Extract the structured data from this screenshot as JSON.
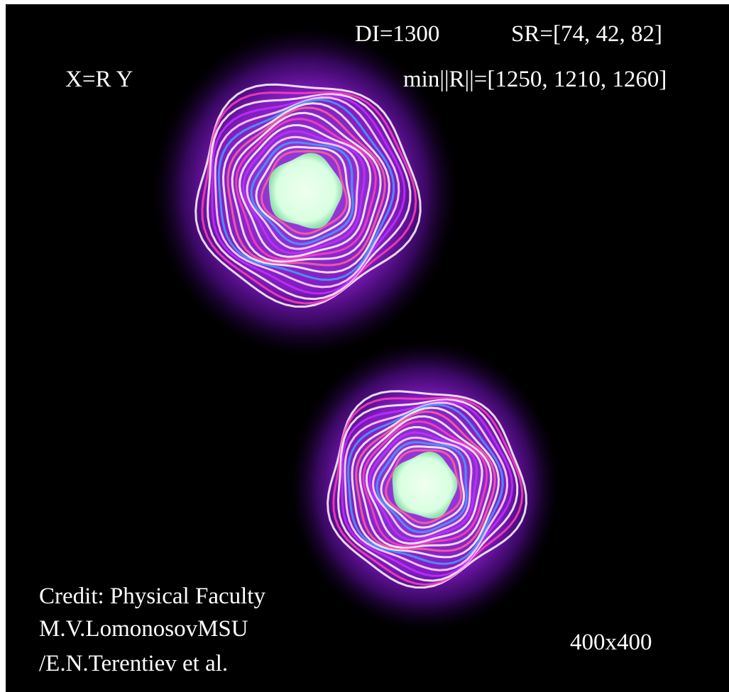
{
  "header": {
    "di": "DI=1300",
    "sr": "SR=[74, 42, 82]",
    "axes": "X=R Y",
    "min_r": "min||R||=[1250, 1210, 1260]"
  },
  "credit": {
    "lines": [
      "Credit: Physical Faculty",
      "M.V.LomonosovMSU",
      "/E.N.Terentiev et al."
    ]
  },
  "size_label": "400x400"
}
